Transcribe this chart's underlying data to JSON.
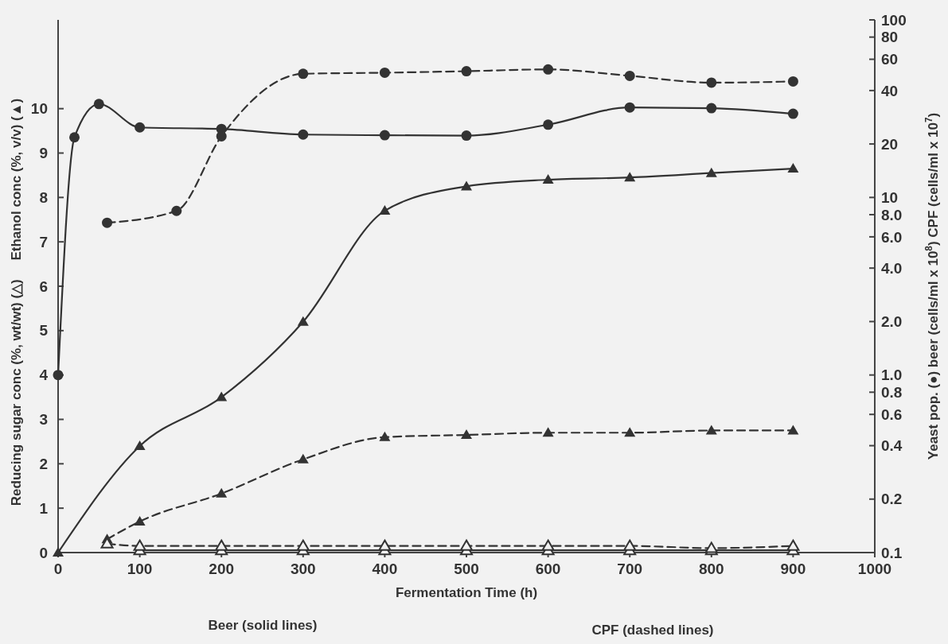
{
  "chart_data": {
    "type": "line",
    "xlabel": "Fermentation Time (h)",
    "ylabel": "Reducing sugar conc (%, wt/wt) (△)     Ethanol conc (%, v/v) (▲)",
    "y2label": "Yeast pop. (●) beer (cells/ml x 10$^{8}$)  CPF (cells/ml x 10$^{7}$)",
    "xlim": [
      0,
      1000
    ],
    "xticks": [
      0,
      100,
      200,
      300,
      400,
      500,
      600,
      700,
      800,
      900,
      1000
    ],
    "ylim": [
      0,
      12
    ],
    "yticks": [
      0,
      1,
      2,
      3,
      4,
      5,
      6,
      7,
      8,
      9,
      10
    ],
    "y2lim": [
      0.1,
      100
    ],
    "y2ticks": [
      0.1,
      0.2,
      0.4,
      0.6,
      0.8,
      {
        "value": 1,
        "label": "1.0"
      },
      {
        "value": 2,
        "label": "2.0"
      },
      {
        "value": 4,
        "label": "4.0"
      },
      {
        "value": 6,
        "label": "6.0"
      },
      {
        "value": 8,
        "label": "8.0"
      },
      10,
      20,
      40,
      60,
      80,
      100
    ],
    "log": "y2",
    "grid": false,
    "annotations": [
      "Beer (solid lines)",
      "CPF (dashed lines)"
    ],
    "series": [
      {
        "color": "#333333",
        "axis": "y2",
        "marker": "circle",
        "line_style": "solid",
        "x": [
          0,
          20,
          50,
          100,
          200,
          300,
          400,
          500,
          600,
          700,
          800,
          900
        ],
        "values": [
          1.0,
          21.8,
          33.6,
          24.8,
          24.3,
          22.6,
          22.4,
          22.3,
          25.7,
          32.1,
          31.8,
          29.6
        ]
      },
      {
        "color": "#333333",
        "axis": "y2",
        "marker": "circle",
        "line_style": "dashed",
        "x": [
          60,
          145,
          200,
          300,
          400,
          500,
          600,
          700,
          800,
          900
        ],
        "values": [
          7.2,
          8.4,
          22.1,
          49.7,
          50.4,
          51.4,
          52.6,
          48.4,
          44.3,
          45.0
        ]
      },
      {
        "color": "#333333",
        "marker": "triangle",
        "line_style": "solid",
        "x": [
          0,
          100,
          200,
          300,
          400,
          500,
          600,
          700,
          800,
          900
        ],
        "values": [
          0,
          2.4,
          3.5,
          5.2,
          7.7,
          8.25,
          8.4,
          8.45,
          8.55,
          8.65
        ]
      },
      {
        "color": "#333333",
        "marker": "triangle",
        "line_style": "dashed",
        "x": [
          60,
          100,
          200,
          300,
          400,
          500,
          600,
          700,
          800,
          900
        ],
        "values": [
          0.3,
          0.7,
          1.33,
          2.1,
          2.6,
          2.65,
          2.7,
          2.7,
          2.75,
          2.75
        ]
      },
      {
        "color": "#333333",
        "marker": "triangle-open",
        "line_style": "solid",
        "x": [
          100,
          200,
          300,
          400,
          500,
          600,
          700,
          800,
          900
        ],
        "values": [
          0.05,
          0.05,
          0.05,
          0.05,
          0.05,
          0.05,
          0.05,
          0.05,
          0.05
        ]
      },
      {
        "color": "#333333",
        "marker": "triangle-open",
        "line_style": "dashed",
        "x": [
          60,
          100,
          200,
          300,
          400,
          500,
          600,
          700,
          800,
          900
        ],
        "values": [
          0.2,
          0.15,
          0.15,
          0.15,
          0.15,
          0.15,
          0.15,
          0.15,
          0.1,
          0.15
        ]
      }
    ]
  }
}
